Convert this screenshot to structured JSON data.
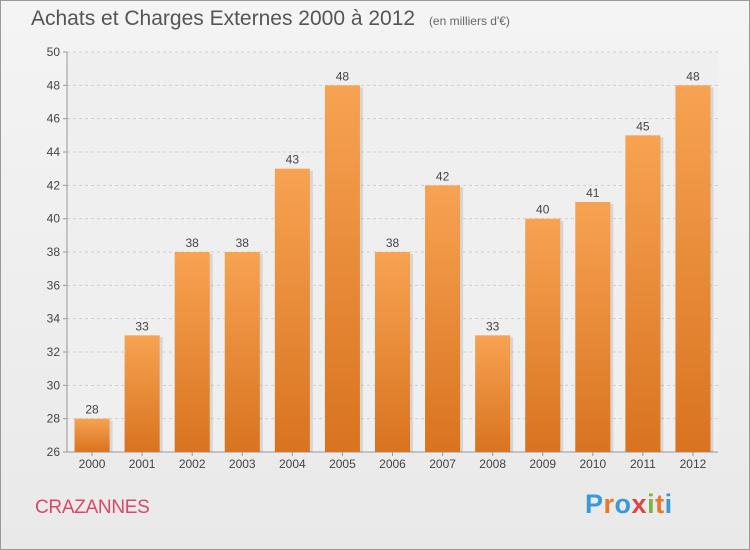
{
  "header": {
    "title": "Achats et Charges Externes 2000 à 2012",
    "unit": "(en milliers d'€)"
  },
  "footer": {
    "commune": "CRAZANNES",
    "brand_letters": [
      "P",
      "r",
      "o",
      "x",
      "i",
      "t",
      "i"
    ],
    "brand_colors": [
      "#3a9ad9",
      "#e8772e",
      "#3a9ad9",
      "#d94848",
      "#7cb342",
      "#e8772e",
      "#3a9ad9"
    ]
  },
  "colors": {
    "bar_top": "#f7a352",
    "bar_bottom": "#d9731f",
    "grid": "#cfcfcf",
    "axis": "#999999",
    "text": "#444444"
  },
  "chart_data": {
    "type": "bar",
    "categories": [
      "2000",
      "2001",
      "2002",
      "2003",
      "2004",
      "2005",
      "2006",
      "2007",
      "2008",
      "2009",
      "2010",
      "2011",
      "2012"
    ],
    "values": [
      28,
      33,
      38,
      38,
      43,
      48,
      38,
      42,
      33,
      40,
      41,
      45,
      48
    ],
    "ylim": [
      26,
      50
    ],
    "yticks": [
      26,
      28,
      30,
      32,
      34,
      36,
      38,
      40,
      42,
      44,
      46,
      48,
      50
    ],
    "grid": true,
    "data_labels": true
  }
}
